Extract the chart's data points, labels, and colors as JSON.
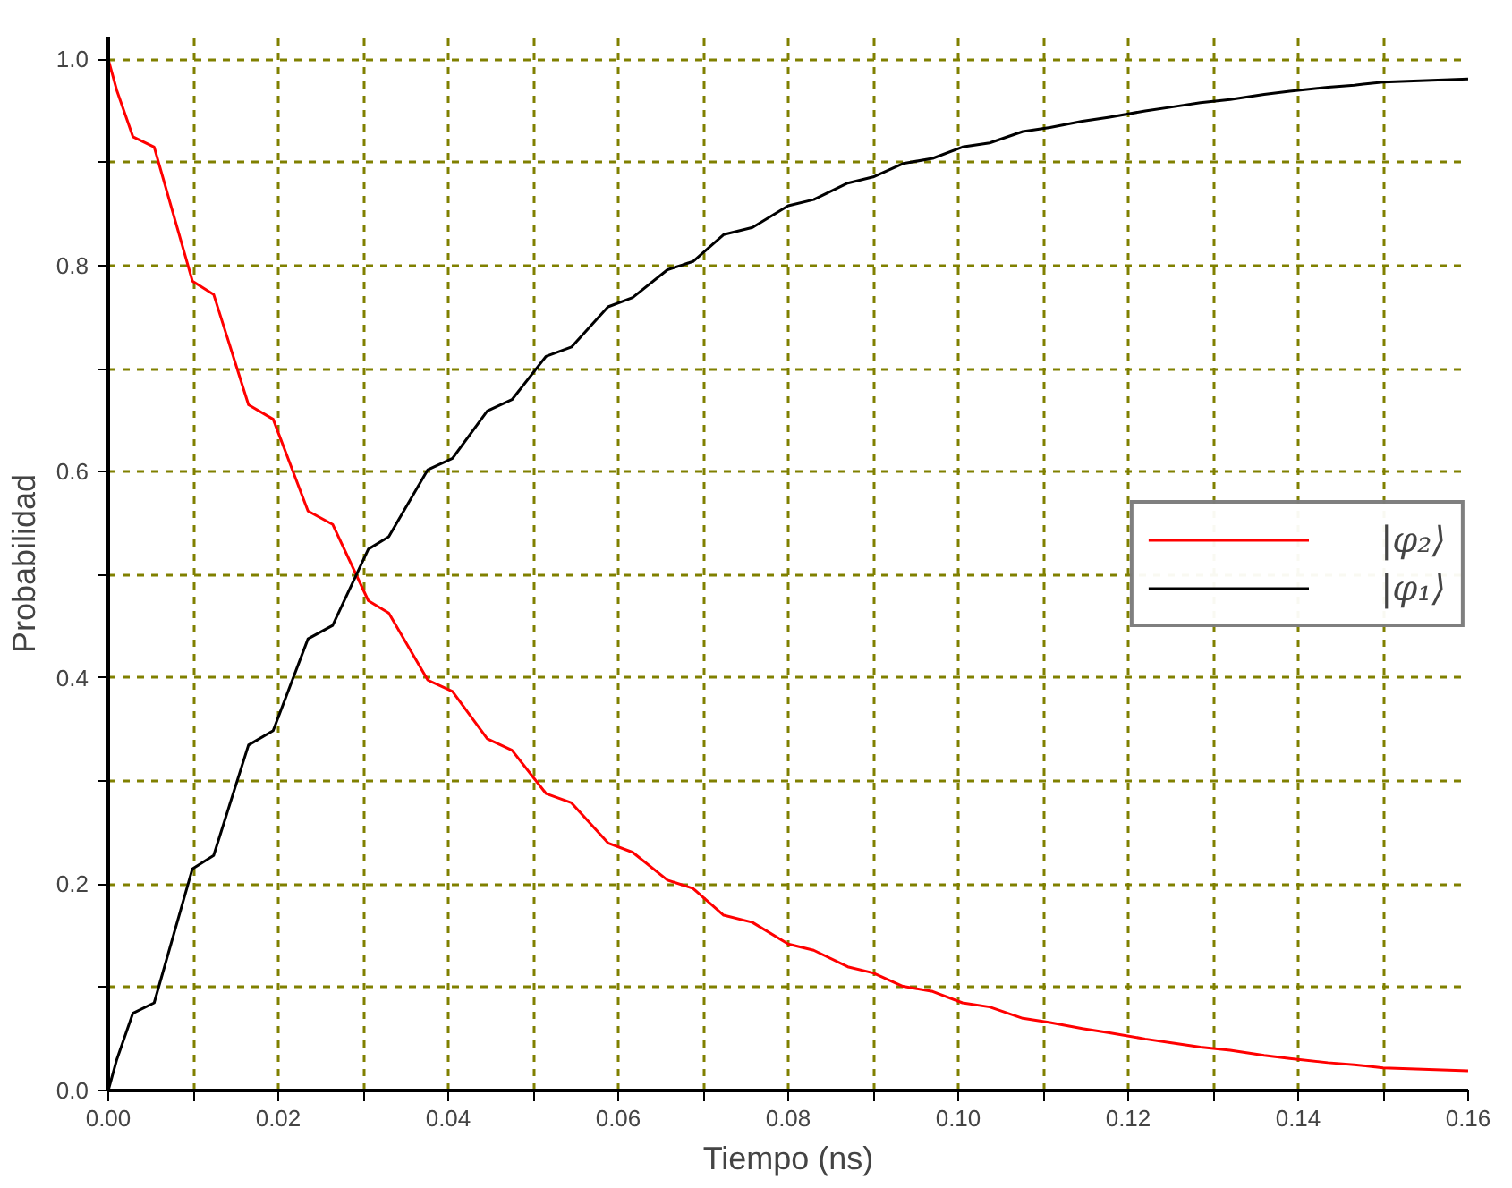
{
  "chart_data": {
    "type": "line",
    "xlabel": "Tiempo (ns)",
    "ylabel": "Probabilidad",
    "x": [
      0,
      0.001,
      0.0029,
      0.0054,
      0.0099,
      0.0124,
      0.0165,
      0.0194,
      0.0235,
      0.0264,
      0.0306,
      0.033,
      0.0376,
      0.0405,
      0.0446,
      0.0475,
      0.0515,
      0.0545,
      0.0588,
      0.0617,
      0.0658,
      0.0688,
      0.0724,
      0.0758,
      0.08,
      0.083,
      0.087,
      0.09,
      0.0935,
      0.097,
      0.1005,
      0.1037,
      0.1076,
      0.1108,
      0.1146,
      0.1178,
      0.122,
      0.1253,
      0.1285,
      0.132,
      0.136,
      0.139,
      0.1435,
      0.1466,
      0.15,
      0.16
    ],
    "series": [
      {
        "name": "|φ₂⟩",
        "color": "#ff0000",
        "values": [
          1.0,
          0.97,
          0.925,
          0.915,
          0.785,
          0.772,
          0.665,
          0.651,
          0.562,
          0.549,
          0.475,
          0.463,
          0.398,
          0.387,
          0.341,
          0.33,
          0.288,
          0.279,
          0.24,
          0.231,
          0.204,
          0.196,
          0.17,
          0.163,
          0.142,
          0.136,
          0.12,
          0.114,
          0.101,
          0.096,
          0.085,
          0.081,
          0.07,
          0.066,
          0.06,
          0.056,
          0.05,
          0.046,
          0.042,
          0.039,
          0.034,
          0.031,
          0.027,
          0.025,
          0.022,
          0.019
        ]
      },
      {
        "name": "|φ₁⟩",
        "color": "#000000",
        "values": [
          0.0,
          0.03,
          0.075,
          0.085,
          0.215,
          0.228,
          0.335,
          0.349,
          0.438,
          0.451,
          0.525,
          0.537,
          0.602,
          0.613,
          0.659,
          0.67,
          0.712,
          0.721,
          0.76,
          0.769,
          0.796,
          0.804,
          0.83,
          0.837,
          0.858,
          0.864,
          0.88,
          0.886,
          0.899,
          0.904,
          0.915,
          0.919,
          0.93,
          0.934,
          0.94,
          0.944,
          0.95,
          0.954,
          0.958,
          0.961,
          0.966,
          0.969,
          0.973,
          0.975,
          0.978,
          0.981
        ]
      }
    ],
    "xlim": [
      0,
      0.16
    ],
    "ylim": [
      0,
      1.022
    ],
    "xticks": [
      {
        "value": 0,
        "label": "0.00"
      },
      {
        "value": 0.01,
        "label": null
      },
      {
        "value": 0.02,
        "label": "0.02"
      },
      {
        "value": 0.03,
        "label": null
      },
      {
        "value": 0.04,
        "label": "0.04"
      },
      {
        "value": 0.05,
        "label": null
      },
      {
        "value": 0.06,
        "label": "0.06"
      },
      {
        "value": 0.07,
        "label": null
      },
      {
        "value": 0.08,
        "label": "0.08"
      },
      {
        "value": 0.09,
        "label": null
      },
      {
        "value": 0.1,
        "label": "0.10"
      },
      {
        "value": 0.11,
        "label": null
      },
      {
        "value": 0.12,
        "label": "0.12"
      },
      {
        "value": 0.13,
        "label": null
      },
      {
        "value": 0.14,
        "label": "0.14"
      },
      {
        "value": 0.15,
        "label": null
      },
      {
        "value": 0.16,
        "label": "0.16"
      }
    ],
    "yticks": [
      {
        "value": 0,
        "label": "0.0"
      },
      {
        "value": 0.1,
        "label": null
      },
      {
        "value": 0.2,
        "label": "0.2"
      },
      {
        "value": 0.3,
        "label": null
      },
      {
        "value": 0.4,
        "label": "0.4"
      },
      {
        "value": 0.5,
        "label": null
      },
      {
        "value": 0.6,
        "label": "0.6"
      },
      {
        "value": 0.7,
        "label": null
      },
      {
        "value": 0.8,
        "label": "0.8"
      },
      {
        "value": 0.9,
        "label": null
      },
      {
        "value": 1.0,
        "label": "1.0"
      }
    ],
    "grid": true,
    "legend": "right",
    "marker": "none",
    "line_style": "solid"
  }
}
